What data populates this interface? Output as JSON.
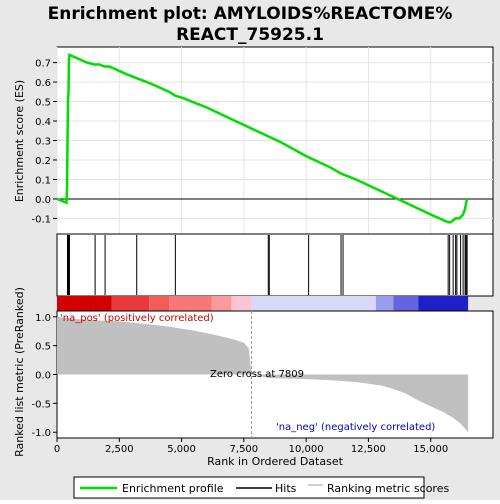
{
  "chart_data": {
    "type": "line",
    "title": "Enrichment plot: AMYLOIDS%REACTOME%\nREACT_75925.1",
    "x_axis": {
      "label": "Rank in Ordered Dataset",
      "ticks": [
        "0",
        "2,500",
        "5,000",
        "7,500",
        "10,000",
        "12,500",
        "15,000"
      ],
      "tick_values": [
        0,
        2500,
        5000,
        7500,
        10000,
        12500,
        15000
      ],
      "range": [
        0,
        17500
      ]
    },
    "enrichment_panel": {
      "ylabel": "Enrichment score (ES)",
      "ylim": [
        -0.18,
        0.78
      ],
      "ticks": [
        -0.1,
        0.0,
        0.1,
        0.2,
        0.3,
        0.4,
        0.5,
        0.6,
        0.7
      ],
      "tick_labels": [
        "-0.1",
        "0.0",
        "0.1",
        "0.2",
        "0.3",
        "0.4",
        "0.5",
        "0.6",
        "0.7"
      ],
      "zero_line": true,
      "line_color": "#00dd00",
      "series": [
        {
          "x": [
            0,
            380,
            400,
            420,
            440,
            460,
            480,
            500,
            1200,
            1500,
            1700,
            1900,
            2100,
            2800,
            3200,
            3800,
            4500,
            4750,
            5000,
            6000,
            7000,
            8000,
            8500,
            9000,
            10000,
            11000,
            11400,
            12000,
            13000,
            14000,
            15000,
            15700,
            15800,
            15900,
            16000,
            16150,
            16300,
            16380,
            16420,
            16460
          ],
          "y": [
            0.0,
            -0.02,
            0.05,
            0.3,
            0.5,
            0.55,
            0.72,
            0.74,
            0.7,
            0.69,
            0.69,
            0.68,
            0.68,
            0.64,
            0.62,
            0.59,
            0.55,
            0.53,
            0.52,
            0.47,
            0.41,
            0.35,
            0.32,
            0.29,
            0.22,
            0.16,
            0.13,
            0.1,
            0.04,
            -0.02,
            -0.08,
            -0.12,
            -0.12,
            -0.11,
            -0.1,
            -0.1,
            -0.08,
            -0.05,
            -0.02,
            0.0
          ]
        }
      ]
    },
    "hits_panel": {
      "hit_ranks": [
        420,
        440,
        460,
        480,
        500,
        1530,
        1930,
        3200,
        4750,
        8480,
        8520,
        10100,
        11400,
        11480,
        15700,
        15760,
        15900,
        16000,
        16050,
        16200,
        16300,
        16380,
        16420,
        16460
      ],
      "hit_color": "#000000"
    },
    "color_bar": {
      "segments": [
        {
          "from": 0,
          "to": 2200,
          "color": "#d40000"
        },
        {
          "from": 2200,
          "to": 3700,
          "color": "#e83a3a"
        },
        {
          "from": 3700,
          "to": 4500,
          "color": "#f45c5c"
        },
        {
          "from": 4500,
          "to": 6200,
          "color": "#f87878"
        },
        {
          "from": 6200,
          "to": 7000,
          "color": "#fb9a9a"
        },
        {
          "from": 7000,
          "to": 7800,
          "color": "#fcc4d6"
        },
        {
          "from": 7800,
          "to": 12800,
          "color": "#d8d8f8"
        },
        {
          "from": 12800,
          "to": 13500,
          "color": "#9c9cf0"
        },
        {
          "from": 13500,
          "to": 14500,
          "color": "#6464e0"
        },
        {
          "from": 14500,
          "to": 16500,
          "color": "#2020c8"
        }
      ]
    },
    "metric_panel": {
      "ylabel": "Ranked list metric (PreRanked)",
      "ylim": [
        -1.1,
        1.1
      ],
      "ticks": [
        -1.0,
        -0.5,
        0.0,
        0.5,
        1.0
      ],
      "tick_labels": [
        "-1.0",
        "-0.5",
        "0.0",
        "0.5",
        "1.0"
      ],
      "fill_color": "#c0c0c0",
      "profile": {
        "x": [
          0,
          300,
          800,
          1500,
          2500,
          3500,
          4500,
          5500,
          6200,
          7000,
          7500,
          7700,
          7809,
          8500,
          10000,
          11000,
          12000,
          13000,
          13500,
          14000,
          14500,
          15000,
          15500,
          15900,
          16200,
          16400,
          16500
        ],
        "y": [
          1.0,
          0.98,
          0.96,
          0.94,
          0.92,
          0.88,
          0.83,
          0.76,
          0.7,
          0.62,
          0.55,
          0.45,
          0.0,
          -0.06,
          -0.08,
          -0.1,
          -0.13,
          -0.19,
          -0.25,
          -0.33,
          -0.45,
          -0.55,
          -0.65,
          -0.75,
          -0.85,
          -0.95,
          -1.0
        ]
      },
      "annotations": {
        "pos_label": "'na_pos' (positively correlated)",
        "neg_label": "'na_neg' (negatively correlated)",
        "zero_cross": "Zero cross at 7809",
        "zero_cross_value": 7809
      }
    },
    "legend": {
      "placement": "bottom",
      "items": [
        {
          "label": "Enrichment profile",
          "color": "#00dd00",
          "kind": "line"
        },
        {
          "label": "Hits",
          "color": "#000000",
          "kind": "line"
        },
        {
          "label": "Ranking metric scores",
          "color": "#c0c0c0",
          "kind": "line"
        }
      ]
    }
  }
}
